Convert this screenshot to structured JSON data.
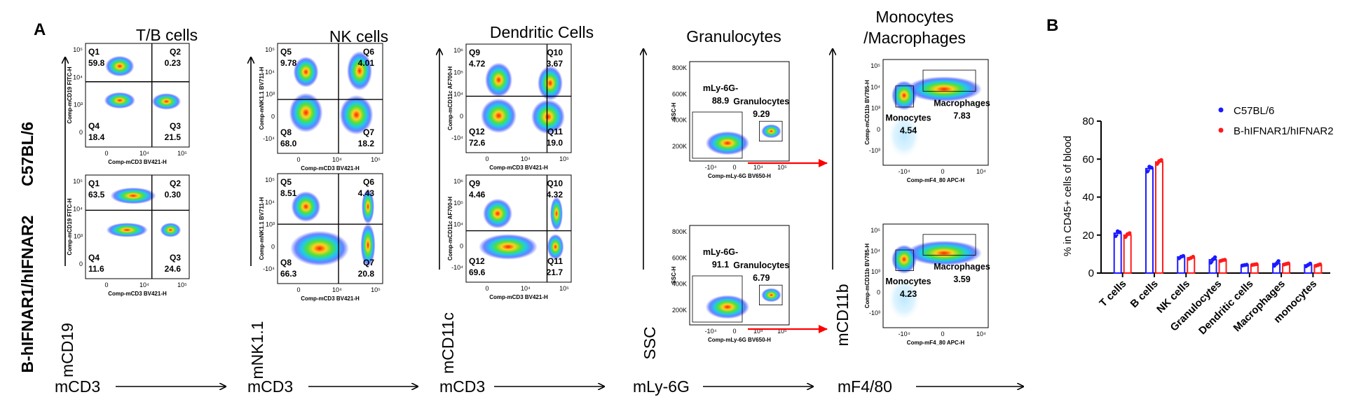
{
  "figure": {
    "panel_a_letter": "A",
    "panel_b_letter": "B",
    "row_labels": [
      "C57BL/6",
      "B-hIFNAR1/hIFNAR2"
    ],
    "columns": [
      {
        "title": "T/B cells",
        "big_y_label": "mCD19",
        "big_x_label": "mCD3",
        "type": "quadrant",
        "small_y_label": "Comp-mCD19 FITC-H",
        "small_x_label": "Comp-mCD3 BV421-H",
        "y_ticks": [
          "10⁵",
          "10⁴",
          "10³",
          "0"
        ],
        "x_ticks": [
          "0",
          "10⁴",
          "10⁵"
        ],
        "plots": [
          {
            "quads": [
              [
                "Q1",
                "59.8"
              ],
              [
                "Q2",
                "0.23"
              ],
              [
                "Q4",
                "18.4"
              ],
              [
                "Q3",
                "21.5"
              ]
            ]
          },
          {
            "quads": [
              [
                "Q1",
                "63.5"
              ],
              [
                "Q2",
                "0.30"
              ],
              [
                "Q4",
                "11.6"
              ],
              [
                "Q3",
                "24.6"
              ]
            ]
          }
        ]
      },
      {
        "title": "NK cells",
        "big_y_label": "mNK1.1",
        "big_x_label": "mCD3",
        "type": "quadrant",
        "small_y_label": "Comp-mNK1.1 BV711-H",
        "small_x_label": "Comp-mCD3 BV421-H",
        "y_ticks": [
          "10⁵",
          "10⁴",
          "10³",
          "0",
          "-10⁴"
        ],
        "x_ticks": [
          "0",
          "10⁴",
          "10⁵"
        ],
        "plots": [
          {
            "quads": [
              [
                "Q5",
                "9.78"
              ],
              [
                "Q6",
                "4.01"
              ],
              [
                "Q8",
                "68.0"
              ],
              [
                "Q7",
                "18.2"
              ]
            ]
          },
          {
            "quads": [
              [
                "Q5",
                "8.51"
              ],
              [
                "Q6",
                "4.43"
              ],
              [
                "Q8",
                "66.3"
              ],
              [
                "Q7",
                "20.8"
              ]
            ]
          }
        ]
      },
      {
        "title": "Dendritic Cells",
        "big_y_label": "mCD11c",
        "big_x_label": "mCD3",
        "type": "quadrant",
        "small_y_label": "Comp-mCD11c AF700-H",
        "small_x_label": "Comp-mCD3 BV421-H",
        "y_ticks": [
          "10⁶",
          "10⁵",
          "10⁴",
          "0",
          "-10⁴"
        ],
        "x_ticks": [
          "0",
          "10⁴",
          "10⁵"
        ],
        "plots": [
          {
            "quads": [
              [
                "Q9",
                "4.72"
              ],
              [
                "Q10",
                "3.67"
              ],
              [
                "Q12",
                "72.6"
              ],
              [
                "Q11",
                "19.0"
              ]
            ]
          },
          {
            "quads": [
              [
                "Q9",
                "4.46"
              ],
              [
                "Q10",
                "4.32"
              ],
              [
                "Q12",
                "69.6"
              ],
              [
                "Q11",
                "21.7"
              ]
            ]
          }
        ]
      },
      {
        "title": "Granulocytes",
        "big_y_label": "SSC",
        "big_x_label": "mLy-6G",
        "type": "gate",
        "small_y_label": "SSC-H",
        "small_x_label": "Comp-mLy-6G BV650-H",
        "y_ticks": [
          "800K",
          "600K",
          "400K",
          "200K"
        ],
        "x_ticks": [
          "-10⁴",
          "0",
          "10⁴",
          "10⁵"
        ],
        "plots": [
          {
            "gate1_name": "mLy-6G-",
            "gate1_val": "88.9",
            "gate2_name": "Granulocytes",
            "gate2_val": "9.29"
          },
          {
            "gate1_name": "mLy-6G-",
            "gate1_val": "91.1",
            "gate2_name": "Granulocytes",
            "gate2_val": "6.79"
          }
        ]
      },
      {
        "title_line1": "Monocytes",
        "title_line2": "/Macrophages",
        "big_y_label": "mCD11b",
        "big_x_label": "mF4/80",
        "type": "gate",
        "small_y_label": "Comp-mCD11b BV785-H",
        "small_x_label": "Comp-mF4_80 APC-H",
        "y_ticks": [
          "10⁵",
          "10⁴",
          "10³",
          "0",
          "-10³"
        ],
        "x_ticks": [
          "-10⁴",
          "0",
          "10⁴"
        ],
        "plots": [
          {
            "gate1_name": "Monocytes",
            "gate1_val": "4.54",
            "gate2_name": "Macrophages",
            "gate2_val": "7.83"
          },
          {
            "gate1_name": "Monocytes",
            "gate1_val": "4.23",
            "gate2_name": "Macrophages",
            "gate2_val": "3.59"
          }
        ]
      }
    ]
  },
  "chart_data": {
    "type": "bar",
    "ylabel": "% in CD45+ cells of blood",
    "xlabel": "",
    "ylim": [
      0,
      80
    ],
    "yticks": [
      0,
      20,
      40,
      60,
      80
    ],
    "legend_placement": "top-right",
    "categories": [
      "T cells",
      "B cells",
      "NK cells",
      "Granulocytes",
      "Dendritic cells",
      "Macrophages",
      "monocytes"
    ],
    "series": [
      {
        "name": "C57BL/6",
        "color": "#1a1aff",
        "values": [
          21,
          55,
          8.5,
          7,
          4.2,
          5,
          4.3
        ],
        "points": [
          [
            19.5,
            22,
            21.5
          ],
          [
            53.5,
            56,
            55.5
          ],
          [
            7.8,
            8.6,
            9
          ],
          [
            5.5,
            7.2,
            8.3
          ],
          [
            4,
            4.2,
            4.4
          ],
          [
            3.8,
            4.9,
            6.3
          ],
          [
            3.6,
            4.3,
            5.0
          ]
        ]
      },
      {
        "name": "B-hIFNAR1/hIFNAR2",
        "color": "#ff1a1a",
        "values": [
          20,
          58.5,
          8,
          6.7,
          4.5,
          4.8,
          4.2
        ],
        "points": [
          [
            19,
            20.5,
            21
          ],
          [
            57.5,
            59,
            59.5
          ],
          [
            7.5,
            8,
            8.6
          ],
          [
            6.4,
            6.8,
            7
          ],
          [
            4.3,
            4.5,
            4.7
          ],
          [
            4.5,
            4.8,
            5.1
          ],
          [
            3.8,
            4.2,
            4.6
          ]
        ]
      }
    ]
  }
}
